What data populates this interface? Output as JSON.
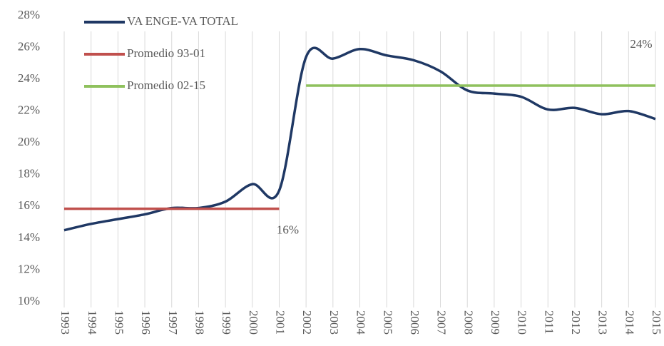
{
  "chart_data": {
    "type": "line",
    "categories": [
      "1993",
      "1994",
      "1995",
      "1996",
      "1997",
      "1998",
      "1999",
      "2000",
      "2001",
      "2002",
      "2003",
      "2004",
      "2005",
      "2006",
      "2007",
      "2008",
      "2009",
      "2010",
      "2011",
      "2012",
      "2013",
      "2014",
      "2015"
    ],
    "series": [
      {
        "name": "VA ENGE-VA TOTAL",
        "color": "#1f3864",
        "values": [
          14.5,
          14.9,
          15.2,
          15.5,
          15.9,
          15.9,
          16.3,
          17.4,
          17.0,
          25.4,
          25.3,
          25.9,
          25.5,
          25.2,
          24.5,
          23.3,
          23.1,
          22.9,
          22.1,
          22.2,
          21.8,
          22.0,
          21.5
        ]
      },
      {
        "name": "Promedio 93-01",
        "color": "#c0504d",
        "values": [
          15.85,
          15.85,
          15.85,
          15.85,
          15.85,
          15.85,
          15.85,
          15.85,
          15.85,
          null,
          null,
          null,
          null,
          null,
          null,
          null,
          null,
          null,
          null,
          null,
          null,
          null,
          null
        ],
        "value_labels": [
          null,
          null,
          null,
          null,
          null,
          null,
          null,
          null,
          "16%",
          null,
          null,
          null,
          null,
          null,
          null,
          null,
          null,
          null,
          null,
          null,
          null,
          null,
          null
        ]
      },
      {
        "name": "Promedio 02-15",
        "color": "#8fc15d",
        "values": [
          null,
          null,
          null,
          null,
          null,
          null,
          null,
          null,
          null,
          23.6,
          23.6,
          23.6,
          23.6,
          23.6,
          23.6,
          23.6,
          23.6,
          23.6,
          23.6,
          23.6,
          23.6,
          23.6,
          23.6
        ],
        "value_labels": [
          null,
          null,
          null,
          null,
          null,
          null,
          null,
          null,
          null,
          null,
          null,
          null,
          null,
          null,
          null,
          null,
          null,
          null,
          null,
          null,
          null,
          null,
          "24%"
        ]
      }
    ],
    "ylim": [
      10,
      28
    ],
    "yticks": [
      {
        "value": 10,
        "label": "10%"
      },
      {
        "value": 12,
        "label": "12%"
      },
      {
        "value": 14,
        "label": "14%"
      },
      {
        "value": 16,
        "label": "16%"
      },
      {
        "value": 18,
        "label": "18%"
      },
      {
        "value": 20,
        "label": "20%"
      },
      {
        "value": 22,
        "label": "22%"
      },
      {
        "value": 24,
        "label": "24%"
      },
      {
        "value": 26,
        "label": "26%"
      },
      {
        "value": 28,
        "label": "28%"
      }
    ],
    "grid": true,
    "legend": "top-left"
  }
}
